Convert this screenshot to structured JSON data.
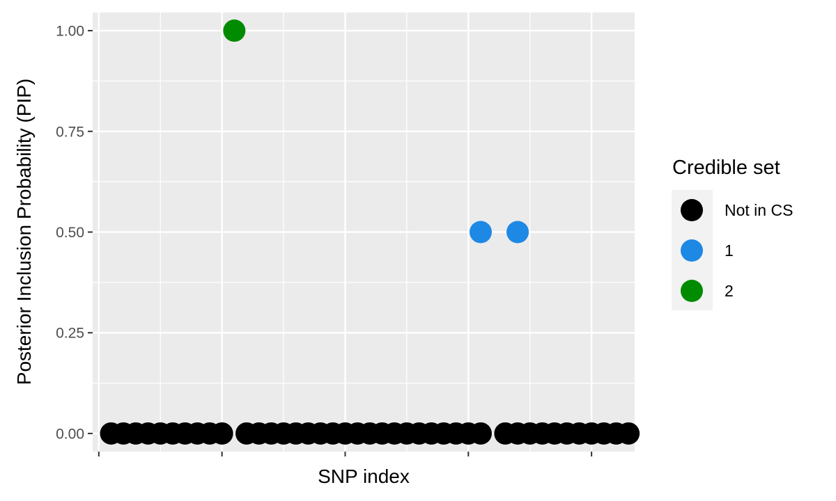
{
  "chart_data": {
    "type": "scatter",
    "xlabel": "SNP index",
    "ylabel": "Posterior Inclusion Probability (PIP)",
    "ylim": [
      -0.045,
      1.045
    ],
    "xlim": [
      -0.5,
      43.5
    ],
    "x_ticks_labeled": false,
    "y_ticks": [
      {
        "value": 0,
        "label": "0.00"
      },
      {
        "value": 0.25,
        "label": "0.25"
      },
      {
        "value": 0.5,
        "label": "0.50"
      },
      {
        "value": 0.75,
        "label": "0.75"
      },
      {
        "value": 1,
        "label": "1.00"
      }
    ],
    "grid": true,
    "legend": {
      "title": "Credible set",
      "placement": "right",
      "entries": [
        {
          "key": "none",
          "label": "Not in CS",
          "color": "#000000"
        },
        {
          "key": "cs1",
          "label": "1",
          "color": "#1e88e5"
        },
        {
          "key": "cs2",
          "label": "2",
          "color": "#008b00"
        }
      ]
    },
    "series": [
      {
        "key": "none",
        "color": "#000000",
        "x": [
          1,
          2,
          3,
          4,
          5,
          6,
          7,
          8,
          9,
          10,
          12,
          13,
          14,
          15,
          16,
          17,
          18,
          19,
          20,
          21,
          22,
          23,
          24,
          25,
          26,
          27,
          28,
          29,
          30,
          31,
          33,
          34,
          35,
          36,
          37,
          38,
          39,
          40,
          41,
          42,
          43
        ],
        "y": [
          0,
          0,
          0,
          0,
          0,
          0,
          0,
          0,
          0,
          0,
          0,
          0,
          0,
          0,
          0,
          0,
          0,
          0,
          0,
          0,
          0,
          0,
          0,
          0,
          0,
          0,
          0,
          0,
          0,
          0,
          0,
          0,
          0,
          0,
          0,
          0,
          0,
          0,
          0,
          0,
          0
        ]
      },
      {
        "key": "cs1",
        "color": "#1e88e5",
        "x": [
          31,
          34
        ],
        "y": [
          0.5,
          0.5
        ]
      },
      {
        "key": "cs2",
        "color": "#008b00",
        "x": [
          11
        ],
        "y": [
          1.0
        ]
      }
    ]
  }
}
